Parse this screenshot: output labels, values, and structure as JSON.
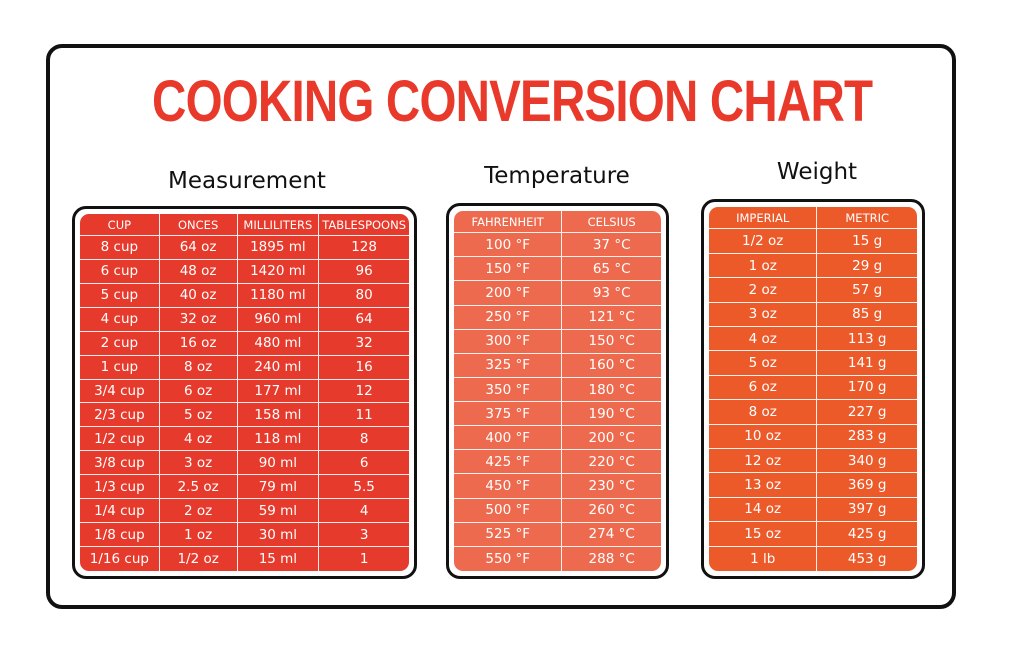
{
  "title": "COOKING CONVERSION CHART",
  "sections": [
    {
      "heading": "Measurement",
      "columns": [
        "CUP",
        "ONCES",
        "MILLILITERS",
        "TABLESPOONS"
      ],
      "rows": [
        [
          "8 cup",
          "64 oz",
          "1895 ml",
          "128"
        ],
        [
          "6 cup",
          "48 oz",
          "1420 ml",
          "96"
        ],
        [
          "5 cup",
          "40 oz",
          "1180 ml",
          "80"
        ],
        [
          "4 cup",
          "32 oz",
          "960 ml",
          "64"
        ],
        [
          "2 cup",
          "16 oz",
          "480 ml",
          "32"
        ],
        [
          "1 cup",
          "8 oz",
          "240 ml",
          "16"
        ],
        [
          "3/4 cup",
          "6 oz",
          "177 ml",
          "12"
        ],
        [
          "2/3 cup",
          "5 oz",
          "158 ml",
          "11"
        ],
        [
          "1/2 cup",
          "4 oz",
          "118 ml",
          "8"
        ],
        [
          "3/8 cup",
          "3 oz",
          "90 ml",
          "6"
        ],
        [
          "1/3 cup",
          "2.5 oz",
          "79 ml",
          "5.5"
        ],
        [
          "1/4 cup",
          "2 oz",
          "59 ml",
          "4"
        ],
        [
          "1/8 cup",
          "1 oz",
          "30 ml",
          "3"
        ],
        [
          "1/16 cup",
          "1/2 oz",
          "15 ml",
          "1"
        ]
      ]
    },
    {
      "heading": "Temperature",
      "columns": [
        "FAHRENHEIT",
        "CELSIUS"
      ],
      "rows": [
        [
          "100 °F",
          "37 °C"
        ],
        [
          "150 °F",
          "65 °C"
        ],
        [
          "200 °F",
          "93 °C"
        ],
        [
          "250 °F",
          "121 °C"
        ],
        [
          "300 °F",
          "150 °C"
        ],
        [
          "325 °F",
          "160 °C"
        ],
        [
          "350 °F",
          "180 °C"
        ],
        [
          "375 °F",
          "190 °C"
        ],
        [
          "400 °F",
          "200 °C"
        ],
        [
          "425 °F",
          "220 °C"
        ],
        [
          "450 °F",
          "230 °C"
        ],
        [
          "500 °F",
          "260 °C"
        ],
        [
          "525 °F",
          "274 °C"
        ],
        [
          "550 °F",
          "288 °C"
        ]
      ]
    },
    {
      "heading": "Weight",
      "columns": [
        "IMPERIAL",
        "METRIC"
      ],
      "rows": [
        [
          "1/2 oz",
          "15 g"
        ],
        [
          "1 oz",
          "29 g"
        ],
        [
          "2 oz",
          "57 g"
        ],
        [
          "3 oz",
          "85 g"
        ],
        [
          "4 oz",
          "113 g"
        ],
        [
          "5 oz",
          "141 g"
        ],
        [
          "6 oz",
          "170 g"
        ],
        [
          "8 oz",
          "227 g"
        ],
        [
          "10 oz",
          "283 g"
        ],
        [
          "12 oz",
          "340 g"
        ],
        [
          "13 oz",
          "369 g"
        ],
        [
          "14 oz",
          "397 g"
        ],
        [
          "15 oz",
          "425 g"
        ],
        [
          "1 lb",
          "453 g"
        ]
      ]
    }
  ]
}
